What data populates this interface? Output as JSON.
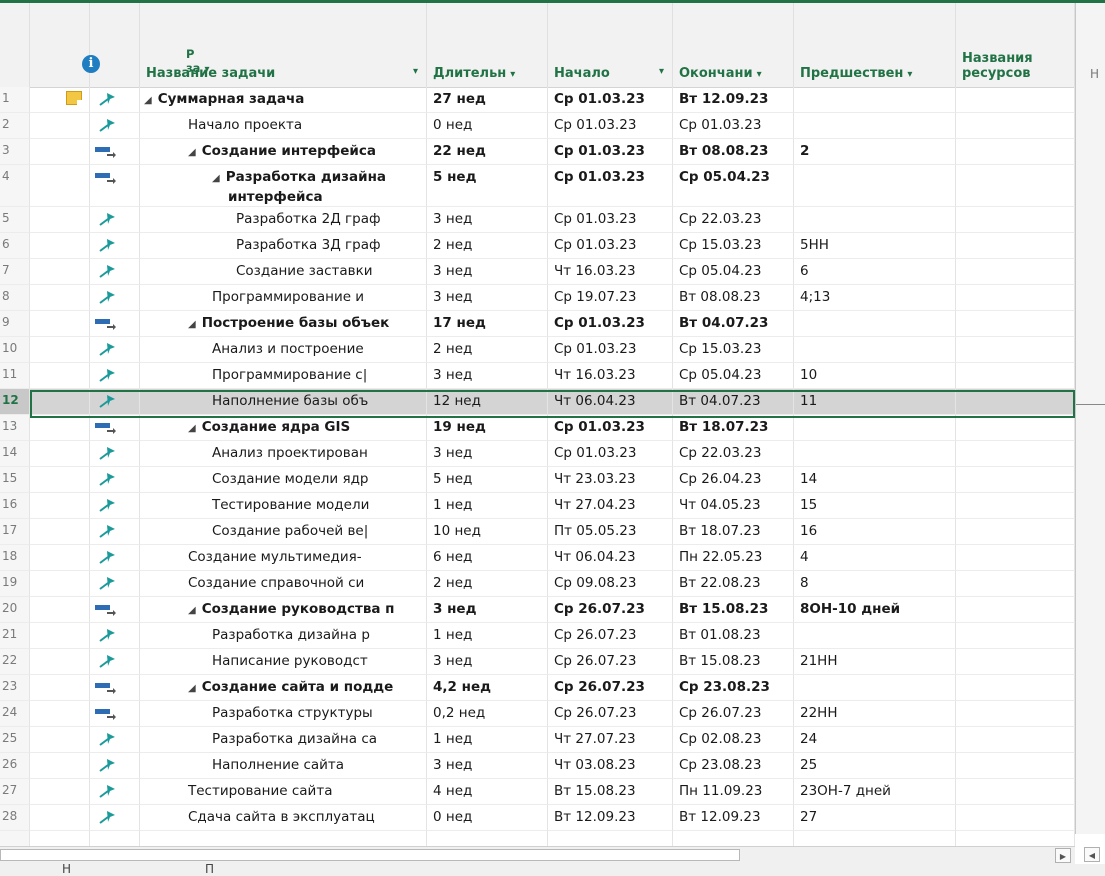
{
  "columns": {
    "mode_header": "Р\nза",
    "name": "Название задачи",
    "duration": "Длительн",
    "start": "Начало",
    "finish": "Окончани",
    "predecessors": "Предшествен",
    "resources_line1": "Названия",
    "resources_line2": "ресурсов",
    "next_hint": "Н"
  },
  "rows": [
    {
      "n": "1",
      "mode": "manual",
      "note": true,
      "level": 0,
      "summary": true,
      "name": "Суммарная задача",
      "dur": "27 нед",
      "start": "Ср 01.03.23",
      "finish": "Вт 12.09.23",
      "pred": ""
    },
    {
      "n": "2",
      "mode": "manual",
      "level": 1,
      "summary": false,
      "name": "Начало проекта",
      "dur": "0 нед",
      "start": "Ср 01.03.23",
      "finish": "Ср 01.03.23",
      "pred": ""
    },
    {
      "n": "3",
      "mode": "auto",
      "level": 1,
      "summary": true,
      "name": "Создание интерфейса",
      "dur": "22 нед",
      "start": "Ср 01.03.23",
      "finish": "Вт 08.08.23",
      "pred": "2"
    },
    {
      "n": "4",
      "mode": "auto",
      "level": 2,
      "summary": true,
      "name": "Разработка дизайна",
      "name2": "интерфейса",
      "dur": "5 нед",
      "start": "Ср 01.03.23",
      "finish": "Ср 05.04.23",
      "pred": ""
    },
    {
      "n": "5",
      "mode": "manual",
      "level": 3,
      "summary": false,
      "name": "Разработка 2Д граф",
      "dur": "3 нед",
      "start": "Ср 01.03.23",
      "finish": "Ср 22.03.23",
      "pred": ""
    },
    {
      "n": "6",
      "mode": "manual",
      "level": 3,
      "summary": false,
      "name": "Разработка 3Д граф",
      "dur": "2 нед",
      "start": "Ср 01.03.23",
      "finish": "Ср 15.03.23",
      "pred": "5НН"
    },
    {
      "n": "7",
      "mode": "manual",
      "level": 3,
      "summary": false,
      "name": "Создание заставки",
      "dur": "3 нед",
      "start": "Чт 16.03.23",
      "finish": "Ср 05.04.23",
      "pred": "6"
    },
    {
      "n": "8",
      "mode": "manual",
      "level": 2,
      "summary": false,
      "name": "Программирование и",
      "dur": "3 нед",
      "start": "Ср 19.07.23",
      "finish": "Вт 08.08.23",
      "pred": "4;13"
    },
    {
      "n": "9",
      "mode": "auto",
      "level": 1,
      "summary": true,
      "name": "Построение базы объек",
      "dur": "17 нед",
      "start": "Ср 01.03.23",
      "finish": "Вт 04.07.23",
      "pred": ""
    },
    {
      "n": "10",
      "mode": "manual",
      "level": 2,
      "summary": false,
      "name": "Анализ и построение",
      "dur": "2 нед",
      "start": "Ср 01.03.23",
      "finish": "Ср 15.03.23",
      "pred": ""
    },
    {
      "n": "11",
      "mode": "manual",
      "level": 2,
      "summary": false,
      "name": "Программирование с|",
      "dur": "3 нед",
      "start": "Чт 16.03.23",
      "finish": "Ср 05.04.23",
      "pred": "10"
    },
    {
      "n": "12",
      "mode": "manual",
      "level": 2,
      "summary": false,
      "selected": true,
      "name": "Наполнение базы объ",
      "dur": "12 нед",
      "start": "Чт 06.04.23",
      "finish": "Вт 04.07.23",
      "pred": "11"
    },
    {
      "n": "13",
      "mode": "auto",
      "level": 1,
      "summary": true,
      "name": "Создание ядра GIS",
      "dur": "19 нед",
      "start": "Ср 01.03.23",
      "finish": "Вт 18.07.23",
      "pred": ""
    },
    {
      "n": "14",
      "mode": "manual",
      "level": 2,
      "summary": false,
      "name": "Анализ проектирован",
      "dur": "3 нед",
      "start": "Ср 01.03.23",
      "finish": "Ср 22.03.23",
      "pred": ""
    },
    {
      "n": "15",
      "mode": "manual",
      "level": 2,
      "summary": false,
      "name": "Создание модели ядр",
      "dur": "5 нед",
      "start": "Чт 23.03.23",
      "finish": "Ср 26.04.23",
      "pred": "14"
    },
    {
      "n": "16",
      "mode": "manual",
      "level": 2,
      "summary": false,
      "name": "Тестирование модели",
      "dur": "1 нед",
      "start": "Чт 27.04.23",
      "finish": "Чт 04.05.23",
      "pred": "15"
    },
    {
      "n": "17",
      "mode": "manual",
      "level": 2,
      "summary": false,
      "name": "Создание рабочей ве|",
      "dur": "10 нед",
      "start": "Пт 05.05.23",
      "finish": "Вт 18.07.23",
      "pred": "16"
    },
    {
      "n": "18",
      "mode": "manual",
      "level": 1,
      "summary": false,
      "name": "Создание мультимедия-",
      "dur": "6 нед",
      "start": "Чт 06.04.23",
      "finish": "Пн 22.05.23",
      "pred": "4"
    },
    {
      "n": "19",
      "mode": "manual",
      "level": 1,
      "summary": false,
      "name": "Создание справочной си",
      "dur": "2 нед",
      "start": "Ср 09.08.23",
      "finish": "Вт 22.08.23",
      "pred": "8"
    },
    {
      "n": "20",
      "mode": "auto",
      "level": 1,
      "summary": true,
      "name": "Создание руководства п",
      "dur": "3 нед",
      "start": "Ср 26.07.23",
      "finish": "Вт 15.08.23",
      "pred": "8ОН-10 дней"
    },
    {
      "n": "21",
      "mode": "manual",
      "level": 2,
      "summary": false,
      "name": "Разработка дизайна р",
      "dur": "1 нед",
      "start": "Ср 26.07.23",
      "finish": "Вт 01.08.23",
      "pred": ""
    },
    {
      "n": "22",
      "mode": "manual",
      "level": 2,
      "summary": false,
      "name": "Написание руководст",
      "dur": "3 нед",
      "start": "Ср 26.07.23",
      "finish": "Вт 15.08.23",
      "pred": "21НН"
    },
    {
      "n": "23",
      "mode": "auto",
      "level": 1,
      "summary": true,
      "name": "Создание сайта и подде",
      "dur": "4,2 нед",
      "start": "Ср 26.07.23",
      "finish": "Ср 23.08.23",
      "pred": ""
    },
    {
      "n": "24",
      "mode": "auto",
      "level": 2,
      "summary": false,
      "name": "Разработка структуры",
      "dur": "0,2 нед",
      "start": "Ср 26.07.23",
      "finish": "Ср 26.07.23",
      "pred": "22НН"
    },
    {
      "n": "25",
      "mode": "manual",
      "level": 2,
      "summary": false,
      "name": "Разработка дизайна са",
      "dur": "1 нед",
      "start": "Чт 27.07.23",
      "finish": "Ср 02.08.23",
      "pred": "24"
    },
    {
      "n": "26",
      "mode": "manual",
      "level": 2,
      "summary": false,
      "name": "Наполнение сайта",
      "dur": "3 нед",
      "start": "Чт 03.08.23",
      "finish": "Ср 23.08.23",
      "pred": "25"
    },
    {
      "n": "27",
      "mode": "manual",
      "level": 1,
      "summary": false,
      "name": "Тестирование сайта",
      "dur": "4 нед",
      "start": "Вт 15.08.23",
      "finish": "Пн 11.09.23",
      "pred": "23ОН-7 дней"
    },
    {
      "n": "28",
      "mode": "manual",
      "level": 1,
      "summary": false,
      "name": "Сдача сайта в эксплуатац",
      "dur": "0 нед",
      "start": "Вт 12.09.23",
      "finish": "Вт 12.09.23",
      "pred": "27"
    }
  ],
  "status": {
    "left": "Н",
    "right": "П"
  },
  "colors": {
    "accent": "#217346",
    "pin": "#1a9a9a",
    "auto_icon": "#2e6db4",
    "note": "#f2c744",
    "selected_row": "#d4d4d4"
  }
}
